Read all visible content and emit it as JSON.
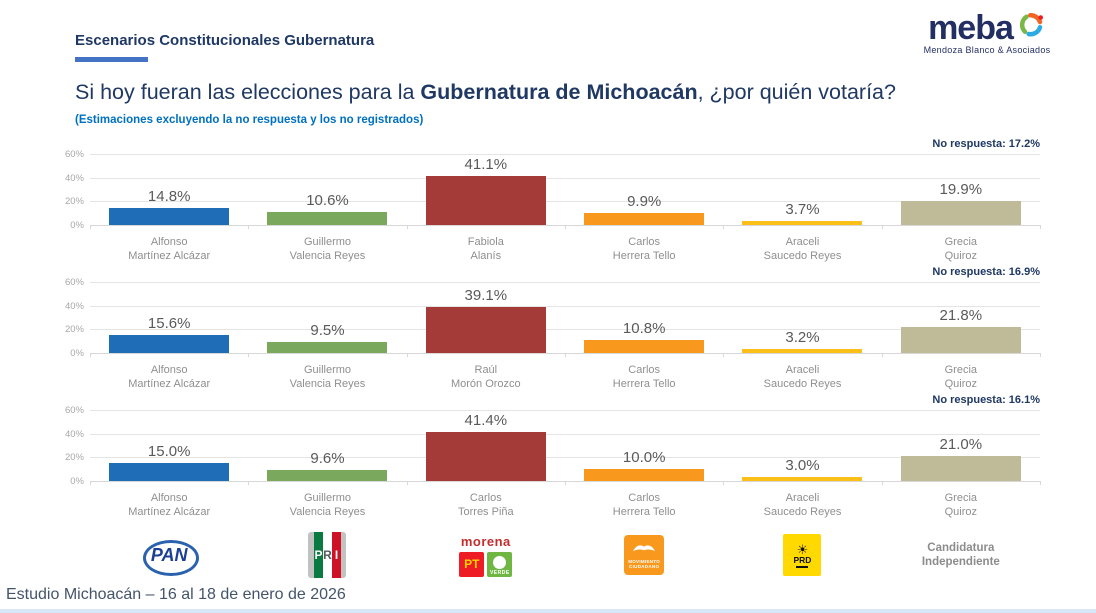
{
  "header": {
    "kicker": "Escenarios Constitucionales Gubernatura",
    "logo": {
      "word": "meba",
      "tagline": "Mendoza Blanco & Asociados"
    }
  },
  "title": {
    "pre": "Si hoy fueran las elecciones para la ",
    "bold": "Gubernatura de Michoacán",
    "post": ", ¿por quién votaría?",
    "subtitle": "(Estimaciones excluyendo la no respuesta y los no registrados)"
  },
  "axis": {
    "max": 60,
    "ticks": [
      {
        "v": 60,
        "label": "60%"
      },
      {
        "v": 40,
        "label": "40%"
      },
      {
        "v": 20,
        "label": "20%"
      },
      {
        "v": 0,
        "label": "0%"
      }
    ]
  },
  "palette": {
    "pan": "#1e6db6",
    "pri": "#7aa85c",
    "morena": "#a43b38",
    "mc": "#f8981d",
    "prd": "#fcbf17",
    "independiente": "#bfba98"
  },
  "chart_data": [
    {
      "type": "bar",
      "no_response": "No respuesta: 17.2%",
      "parties": [
        "pan",
        "pri",
        "morena",
        "mc",
        "prd",
        "independiente"
      ],
      "categories": [
        [
          "Alfonso",
          "Martínez Alcázar"
        ],
        [
          "Guillermo",
          "Valencia Reyes"
        ],
        [
          "Fabiola",
          "Alanís"
        ],
        [
          "Carlos",
          "Herrera Tello"
        ],
        [
          "Araceli",
          "Saucedo Reyes"
        ],
        [
          "Grecia",
          "Quiroz"
        ]
      ],
      "values": [
        14.8,
        10.6,
        41.1,
        9.9,
        3.7,
        19.9
      ],
      "ylim": [
        0,
        60
      ]
    },
    {
      "type": "bar",
      "no_response": "No respuesta: 16.9%",
      "parties": [
        "pan",
        "pri",
        "morena",
        "mc",
        "prd",
        "independiente"
      ],
      "categories": [
        [
          "Alfonso",
          "Martínez Alcázar"
        ],
        [
          "Guillermo",
          "Valencia Reyes"
        ],
        [
          "Raúl",
          "Morón Orozco"
        ],
        [
          "Carlos",
          "Herrera Tello"
        ],
        [
          "Araceli",
          "Saucedo Reyes"
        ],
        [
          "Grecia",
          "Quiroz"
        ]
      ],
      "values": [
        15.6,
        9.5,
        39.1,
        10.8,
        3.2,
        21.8
      ],
      "ylim": [
        0,
        60
      ]
    },
    {
      "type": "bar",
      "no_response": "No respuesta: 16.1%",
      "parties": [
        "pan",
        "pri",
        "morena",
        "mc",
        "prd",
        "independiente"
      ],
      "categories": [
        [
          "Alfonso",
          "Martínez Alcázar"
        ],
        [
          "Guillermo",
          "Valencia Reyes"
        ],
        [
          "Carlos",
          "Torres Piña"
        ],
        [
          "Carlos",
          "Herrera Tello"
        ],
        [
          "Araceli",
          "Saucedo Reyes"
        ],
        [
          "Grecia",
          "Quiroz"
        ]
      ],
      "values": [
        15.0,
        9.6,
        41.4,
        10.0,
        3.0,
        21.0
      ],
      "ylim": [
        0,
        60
      ]
    }
  ],
  "legend": {
    "items": [
      {
        "party": "pan",
        "type": "pan",
        "label": "PAN"
      },
      {
        "party": "pri",
        "type": "pri",
        "letters": [
          "P",
          "R",
          "I"
        ]
      },
      {
        "party": "morena",
        "type": "coalition",
        "morena_label": "morena",
        "pt_label": "PT",
        "verde_label": "VERDE"
      },
      {
        "party": "mc",
        "type": "mc",
        "lines": [
          "MOVIMIENTO",
          "CIUDADANO"
        ]
      },
      {
        "party": "prd",
        "type": "prd",
        "label": "PRD",
        "sun": "☀"
      },
      {
        "party": "independiente",
        "type": "text",
        "lines": [
          "Candidatura",
          "Independiente"
        ]
      }
    ],
    "brand_colors": {
      "pan_blue": "#1a3f94",
      "pri_green": "#0b7a40",
      "pri_red": "#ce1126",
      "morena_red": "#c22d2d",
      "pt_red": "#ee1c25",
      "pt_yellow": "#ffd400",
      "verde_green": "#6fb643",
      "mc_orange": "#f8981d",
      "prd_yellow": "#ffd900"
    }
  },
  "footer": {
    "text": "Estudio Michoacán – 16 al 18 de enero de 2026"
  }
}
